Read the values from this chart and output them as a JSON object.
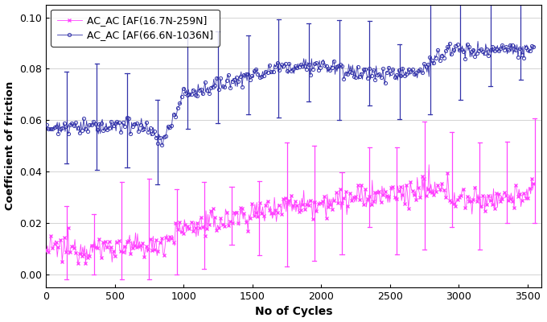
{
  "title": "",
  "xlabel": "No of Cycles",
  "ylabel": "Coefficient of friction",
  "xlim": [
    0,
    3600
  ],
  "ylim": [
    -0.005,
    0.105
  ],
  "yticks": [
    0,
    0.02,
    0.04,
    0.06,
    0.08,
    0.1
  ],
  "xticks": [
    0,
    500,
    1000,
    1500,
    2000,
    2500,
    3000,
    3500
  ],
  "legend1_label": "AC_AC [AF(16.7N-259N]",
  "legend2_label": "AC_AC [AF(66.6N-1036N]",
  "color_pink": "#FF44FF",
  "color_blue": "#3333AA",
  "background_color": "#FFFFFF",
  "figsize": [
    6.8,
    4.0
  ],
  "dpi": 100
}
